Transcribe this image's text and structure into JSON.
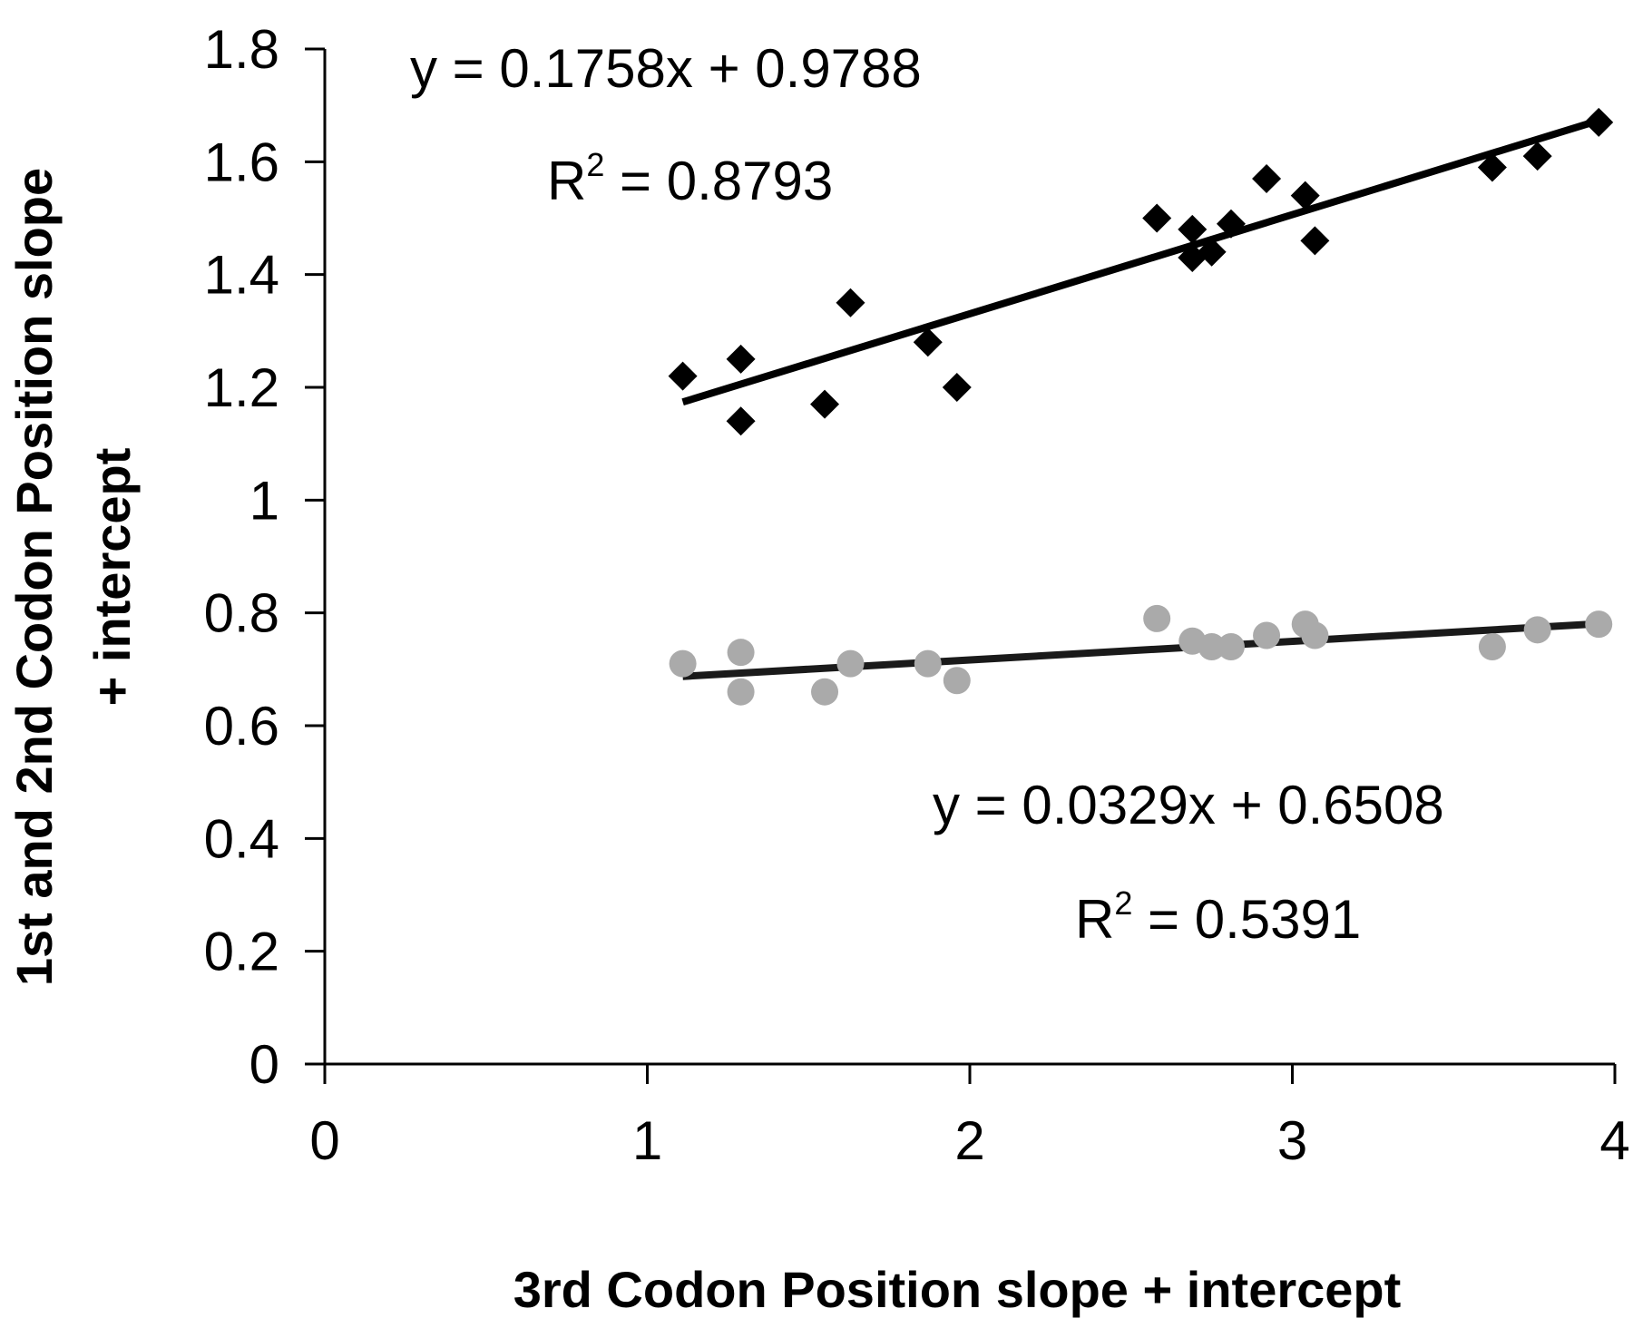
{
  "chart_data": {
    "type": "scatter",
    "xlabel": "3rd Codon Position slope + intercept",
    "ylabel_line1": "1st and 2nd Codon Position slope",
    "ylabel_line2": "+ intercept",
    "xlim": [
      0,
      4
    ],
    "ylim": [
      0,
      1.8
    ],
    "x_ticks": [
      "0",
      "1",
      "2",
      "3",
      "4"
    ],
    "y_ticks": [
      "0",
      "0.2",
      "0.4",
      "0.6",
      "0.8",
      "1",
      "1.2",
      "1.4",
      "1.6",
      "1.8"
    ],
    "grid": false,
    "legend": "none",
    "series": [
      {
        "marker": "diamond",
        "color": "#000000",
        "points": [
          [
            1.11,
            1.22
          ],
          [
            1.29,
            1.25
          ],
          [
            1.29,
            1.14
          ],
          [
            1.55,
            1.17
          ],
          [
            1.63,
            1.35
          ],
          [
            1.87,
            1.28
          ],
          [
            1.96,
            1.2
          ],
          [
            2.58,
            1.5
          ],
          [
            2.69,
            1.48
          ],
          [
            2.69,
            1.43
          ],
          [
            2.75,
            1.44
          ],
          [
            2.81,
            1.49
          ],
          [
            2.92,
            1.57
          ],
          [
            3.04,
            1.54
          ],
          [
            3.07,
            1.46
          ],
          [
            3.62,
            1.59
          ],
          [
            3.76,
            1.61
          ],
          [
            3.95,
            1.67
          ]
        ],
        "trendline": {
          "slope": 0.1758,
          "intercept": 0.9788,
          "x_range": [
            1.11,
            3.95
          ]
        },
        "equation_label": "y = 0.1758x + 0.9788",
        "r2_value": " = 0.8793"
      },
      {
        "marker": "circle",
        "color": "#aaaaaa",
        "points": [
          [
            1.11,
            0.71
          ],
          [
            1.29,
            0.73
          ],
          [
            1.29,
            0.66
          ],
          [
            1.55,
            0.66
          ],
          [
            1.63,
            0.71
          ],
          [
            1.87,
            0.71
          ],
          [
            1.96,
            0.68
          ],
          [
            2.58,
            0.79
          ],
          [
            2.69,
            0.75
          ],
          [
            2.75,
            0.74
          ],
          [
            2.81,
            0.74
          ],
          [
            2.92,
            0.76
          ],
          [
            3.04,
            0.78
          ],
          [
            3.07,
            0.76
          ],
          [
            3.62,
            0.74
          ],
          [
            3.76,
            0.77
          ],
          [
            3.95,
            0.78
          ]
        ],
        "trendline": {
          "slope": 0.0329,
          "intercept": 0.6508,
          "x_range": [
            1.11,
            3.95
          ]
        },
        "equation_label": "y = 0.0329x + 0.6508",
        "r2_value": " = 0.5391"
      }
    ]
  }
}
